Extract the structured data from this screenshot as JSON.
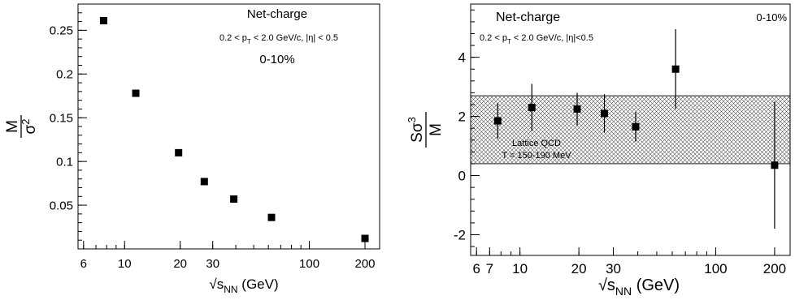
{
  "chart_data": [
    {
      "type": "scatter",
      "x_scale": "log",
      "xlabel_main": "√s",
      "xlabel_sub": "NN",
      "xlabel_unit": " (GeV)",
      "ylabel_num": "M",
      "ylabel_den_base": "σ",
      "ylabel_den_sup": "2",
      "xlim": [
        5.6,
        240
      ],
      "ylim": [
        0,
        0.28
      ],
      "x_ticks": [
        {
          "value": 6,
          "label": "6"
        },
        {
          "value": 10,
          "label": "10"
        },
        {
          "value": 20,
          "label": "20"
        },
        {
          "value": 30,
          "label": "30"
        },
        {
          "value": 100,
          "label": "100"
        },
        {
          "value": 200,
          "label": "200"
        }
      ],
      "y_ticks": [
        {
          "value": 0.05,
          "label": "0.05"
        },
        {
          "value": 0.1,
          "label": "0.1"
        },
        {
          "value": 0.15,
          "label": "0.15"
        },
        {
          "value": 0.2,
          "label": "0.2"
        },
        {
          "value": 0.25,
          "label": "0.25"
        }
      ],
      "annotation_title": "Net-charge",
      "annotation_cut_a": "0.2 < p",
      "annotation_cut_sub": "T",
      "annotation_cut_b": " < 2.0 GeV/c, |η| < 0.5",
      "annotation_centrality": "0-10%",
      "series": [
        {
          "x": [
            7.7,
            11.5,
            19.6,
            27,
            39,
            62.4,
            200
          ],
          "y": [
            0.261,
            0.178,
            0.11,
            0.077,
            0.057,
            0.036,
            0.012
          ]
        }
      ]
    },
    {
      "type": "scatter",
      "x_scale": "log",
      "xlabel_main": "√s",
      "xlabel_sub": "NN",
      "xlabel_unit": " (GeV)",
      "ylabel_base": "Sσ",
      "ylabel_sup": "3",
      "ylabel_den": "M",
      "xlim": [
        5.6,
        240
      ],
      "ylim": [
        -2.7,
        5.8
      ],
      "x_ticks": [
        {
          "value": 6,
          "label": "6"
        },
        {
          "value": 7,
          "label": "7"
        },
        {
          "value": 10,
          "label": "10"
        },
        {
          "value": 20,
          "label": "20"
        },
        {
          "value": 30,
          "label": "30"
        },
        {
          "value": 100,
          "label": "100"
        },
        {
          "value": 200,
          "label": "200"
        }
      ],
      "y_ticks": [
        {
          "value": -2,
          "label": "-2"
        },
        {
          "value": 0,
          "label": "0"
        },
        {
          "value": 2,
          "label": "2"
        },
        {
          "value": 4,
          "label": "4"
        }
      ],
      "annotation_title": "Net-charge",
      "annotation_cut_a": "0.2 < p",
      "annotation_cut_sub": "T",
      "annotation_cut_b": " < 2.0 GeV/c, |η|<0.5",
      "annotation_centrality": "0-10%",
      "band": {
        "label_line1": "Lattice QCD",
        "label_line2": "T = 150-190 MeV",
        "y_low": 0.4,
        "y_high": 2.7
      },
      "series": [
        {
          "x": [
            7.7,
            11.5,
            19.6,
            27,
            39,
            62.4,
            200
          ],
          "y": [
            1.85,
            2.3,
            2.25,
            2.1,
            1.65,
            3.6,
            0.35
          ],
          "err": [
            0.6,
            0.8,
            0.55,
            0.65,
            0.5,
            1.35,
            2.15
          ]
        }
      ]
    }
  ]
}
